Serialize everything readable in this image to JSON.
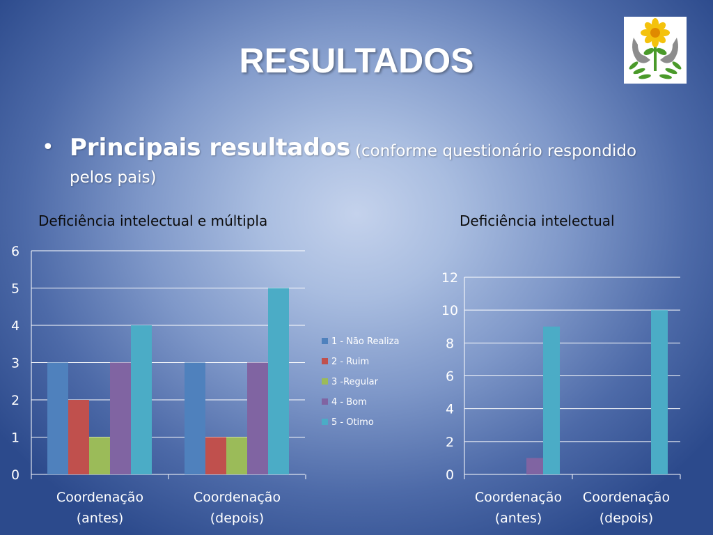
{
  "slide": {
    "title": "RESULTADOS",
    "bullet": {
      "symbol": "•",
      "main": "Principais resultados",
      "sub_line1": "(conforme questionário respondido",
      "sub_line2": "pelos pais)"
    }
  },
  "colors": {
    "series": [
      "#4f81bd",
      "#c0504d",
      "#9bbb59",
      "#8064a2",
      "#4bacc6"
    ]
  },
  "chart_data": [
    {
      "type": "bar",
      "title": "Deficiência intelectual e múltipla",
      "categories": [
        [
          "Coordenação",
          "(antes)"
        ],
        [
          "Coordenação",
          "(depois)"
        ]
      ],
      "series": [
        {
          "name": "1 - Não Realiza",
          "values": [
            3,
            3
          ]
        },
        {
          "name": "2 - Ruim",
          "values": [
            2,
            1
          ]
        },
        {
          "name": "3  -Regular",
          "values": [
            1,
            1
          ]
        },
        {
          "name": "4 - Bom",
          "values": [
            3,
            3
          ]
        },
        {
          "name": "5 - Otimo",
          "values": [
            4,
            5
          ]
        }
      ],
      "ylim": [
        0,
        6
      ],
      "yticks": [
        0,
        1,
        2,
        3,
        4,
        5,
        6
      ],
      "grid": true,
      "legend": "right"
    },
    {
      "type": "bar",
      "title": "Deficiência intelectual",
      "categories": [
        [
          "Coordenação",
          "(antes)"
        ],
        [
          "Coordenação",
          "(depois)"
        ]
      ],
      "series": [
        {
          "name": "1 - Não Realiza",
          "values": [
            0,
            0
          ]
        },
        {
          "name": "2 - Ruim",
          "values": [
            0,
            0
          ]
        },
        {
          "name": "3  -Regular",
          "values": [
            0,
            0
          ]
        },
        {
          "name": "4 - Bom",
          "values": [
            1,
            0
          ]
        },
        {
          "name": "5 - Otimo",
          "values": [
            9,
            10
          ]
        }
      ],
      "ylim": [
        0,
        12
      ],
      "yticks": [
        0,
        2,
        4,
        6,
        8,
        10,
        12
      ],
      "grid": true,
      "legend": "none"
    }
  ]
}
